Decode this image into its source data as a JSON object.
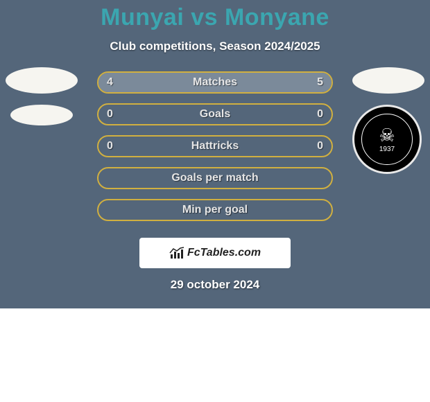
{
  "title_left": "Munyai",
  "title_vs": " vs ",
  "title_right": "Monyane",
  "title_color": "#3ba6b0",
  "subtitle": "Club competitions, Season 2024/2025",
  "footer_brand": "FcTables.com",
  "date": "29 october 2024",
  "panel_bg": "#54667a",
  "bar_border": "#d1b040",
  "bar_fill": "#7b8a9a",
  "text_color": "#e6e6e6",
  "bars": [
    {
      "label": "Matches",
      "left": "4",
      "right": "5",
      "left_pct": 44.4,
      "right_pct": 55.6,
      "show_vals": true
    },
    {
      "label": "Goals",
      "left": "0",
      "right": "0",
      "left_pct": 0,
      "right_pct": 0,
      "show_vals": true
    },
    {
      "label": "Hattricks",
      "left": "0",
      "right": "0",
      "left_pct": 0,
      "right_pct": 0,
      "show_vals": true
    },
    {
      "label": "Goals per match",
      "left": "",
      "right": "",
      "left_pct": 0,
      "right_pct": 0,
      "show_vals": false
    },
    {
      "label": "Min per goal",
      "left": "",
      "right": "",
      "left_pct": 0,
      "right_pct": 0,
      "show_vals": false
    }
  ],
  "right_club": {
    "name": "Orlando Pirates",
    "year": "1937"
  }
}
